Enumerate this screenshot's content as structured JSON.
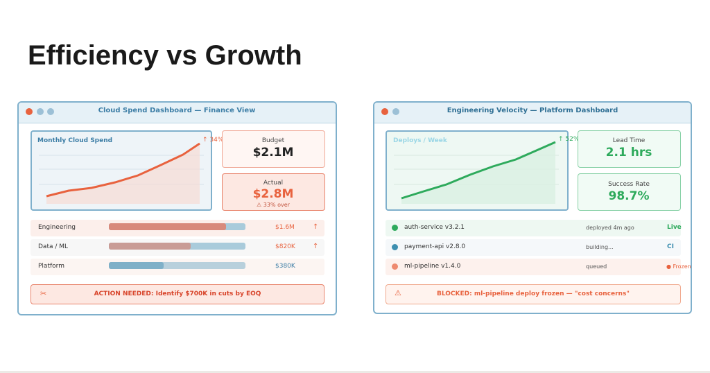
{
  "title": "Efficiency vs Growth",
  "finance": {
    "window_title": "Cloud Spend Dashboard — Finance View",
    "chart_title": "Monthly Cloud Spend",
    "change": "↑ 34%",
    "budget": {
      "label": "Budget",
      "value": "$2.1M"
    },
    "actual": {
      "label": "Actual",
      "value": "$2.8M",
      "note": "⚠ 33% over"
    },
    "rows": [
      {
        "name": "Engineering",
        "amount": "$1.6M",
        "trend": "↑"
      },
      {
        "name": "Data / ML",
        "amount": "$820K",
        "trend": "↑"
      },
      {
        "name": "Platform",
        "amount": "$380K"
      }
    ],
    "alert": {
      "icon": "✂",
      "text": "ACTION NEEDED: Identify $700K in cuts by EOQ"
    }
  },
  "engineering": {
    "window_title": "Engineering Velocity — Platform Dashboard",
    "chart_title": "Deploys / Week",
    "change": "↑ 52%",
    "lead_time": {
      "label": "Lead Time",
      "value": "2.1 hrs"
    },
    "success_rate": {
      "label": "Success Rate",
      "value": "98.7%"
    },
    "rows": [
      {
        "name": "auth-service v3.2.1",
        "status": "deployed 4m ago",
        "tag": "Live"
      },
      {
        "name": "payment-api v2.8.0",
        "status": "building...",
        "tag": "CI"
      },
      {
        "name": "ml-pipeline v1.4.0",
        "status": "queued",
        "tag": "● Frozen"
      }
    ],
    "alert": {
      "icon": "⚠",
      "text": "BLOCKED: ml-pipeline deploy frozen — \"cost concerns\""
    }
  }
}
